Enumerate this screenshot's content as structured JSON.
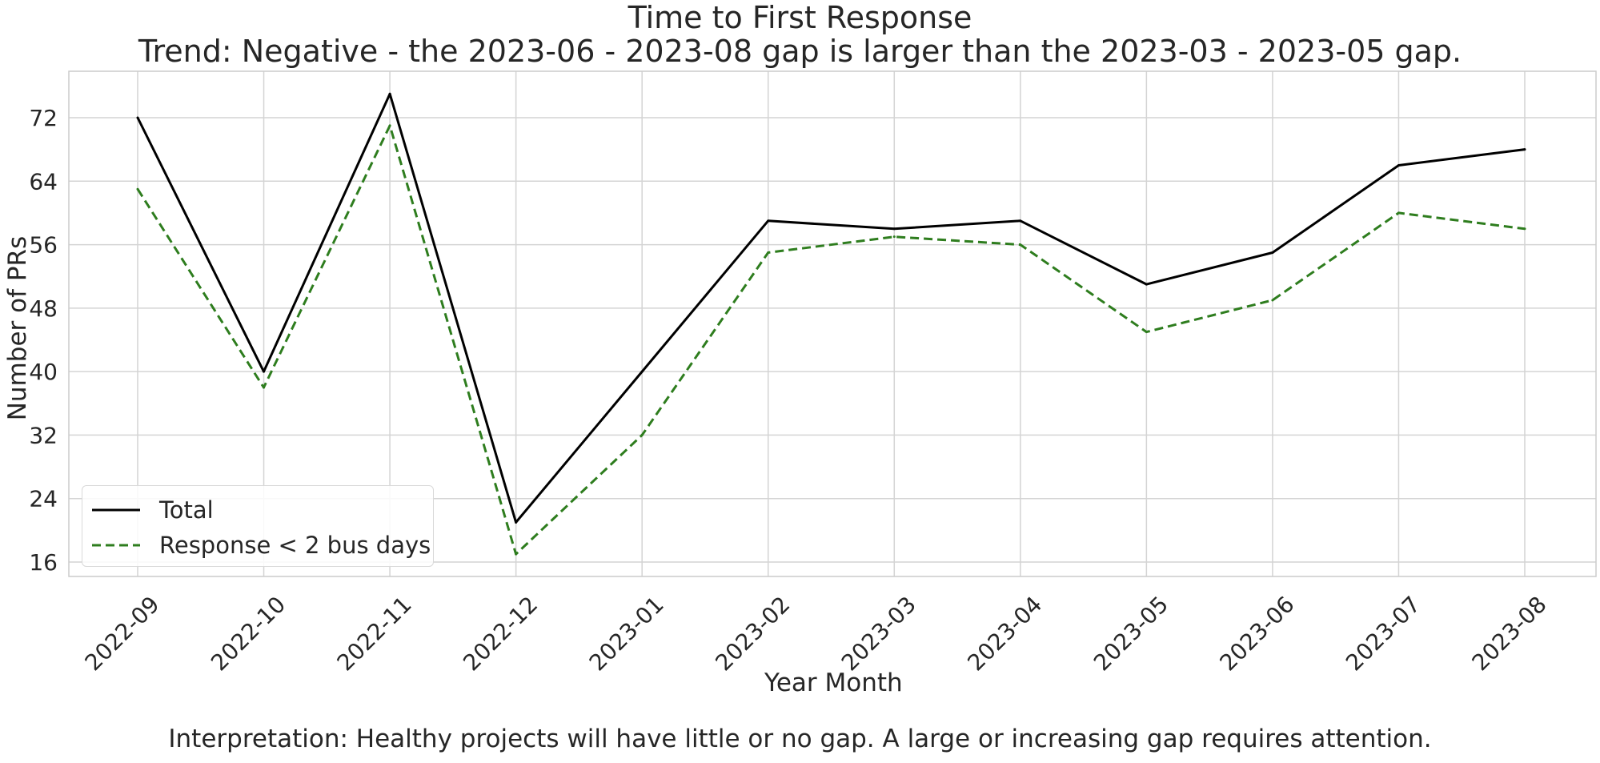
{
  "chart_data": {
    "type": "line",
    "title": "Time to First Response",
    "subtitle": "Trend: Negative - the 2023-06 - 2023-08 gap is larger than the 2023-03 - 2023-05 gap.",
    "xlabel": "Year Month",
    "ylabel": "Number of PRs",
    "categories": [
      "2022-09",
      "2022-10",
      "2022-11",
      "2022-12",
      "2023-01",
      "2023-02",
      "2023-03",
      "2023-04",
      "2023-05",
      "2023-06",
      "2023-07",
      "2023-08"
    ],
    "yticks": [
      16,
      24,
      32,
      40,
      48,
      56,
      64,
      72
    ],
    "ylim": [
      14,
      78
    ],
    "grid": true,
    "legend_position": "lower-left",
    "series": [
      {
        "name": "Total",
        "color": "#000000",
        "style": "solid",
        "values": [
          72,
          40,
          75,
          21,
          40,
          59,
          58,
          59,
          51,
          55,
          66,
          68
        ]
      },
      {
        "name": "Response < 2 bus days",
        "color": "#2e7d1e",
        "style": "dashed",
        "values": [
          63,
          38,
          71,
          17,
          32,
          55,
          57,
          56,
          45,
          49,
          60,
          58
        ]
      }
    ],
    "annotation": "Interpretation: Healthy projects will have little or no gap. A large or increasing gap requires attention."
  }
}
